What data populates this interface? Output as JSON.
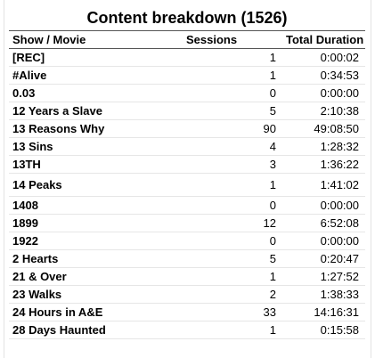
{
  "title": "Content breakdown (1526)",
  "headers": {
    "show": "Show / Movie",
    "sessions": "Sessions",
    "duration": "Total Duration"
  },
  "rows": [
    {
      "name": "[REC]",
      "sessions": "1",
      "duration": "0:00:02"
    },
    {
      "name": "#Alive",
      "sessions": "1",
      "duration": "0:34:53"
    },
    {
      "name": "0.03",
      "sessions": "0",
      "duration": "0:00:00"
    },
    {
      "name": "12 Years a Slave",
      "sessions": "5",
      "duration": "2:10:38"
    },
    {
      "name": "13 Reasons Why",
      "sessions": "90",
      "duration": "49:08:50"
    },
    {
      "name": "13 Sins",
      "sessions": "4",
      "duration": "1:28:32"
    },
    {
      "name": "13TH",
      "sessions": "3",
      "duration": "1:36:22"
    },
    {
      "name": "14 Peaks",
      "sessions": "1",
      "duration": "1:41:02"
    },
    {
      "name": "1408",
      "sessions": "0",
      "duration": "0:00:00"
    },
    {
      "name": "1899",
      "sessions": "12",
      "duration": "6:52:08"
    },
    {
      "name": "1922",
      "sessions": "0",
      "duration": "0:00:00"
    },
    {
      "name": "2 Hearts",
      "sessions": "5",
      "duration": "0:20:47"
    },
    {
      "name": "21 & Over",
      "sessions": "1",
      "duration": "1:27:52"
    },
    {
      "name": "23 Walks",
      "sessions": "2",
      "duration": "1:38:33"
    },
    {
      "name": "24 Hours in A&E",
      "sessions": "33",
      "duration": "14:16:31"
    },
    {
      "name": "28 Days Haunted",
      "sessions": "1",
      "duration": "0:15:58"
    }
  ]
}
